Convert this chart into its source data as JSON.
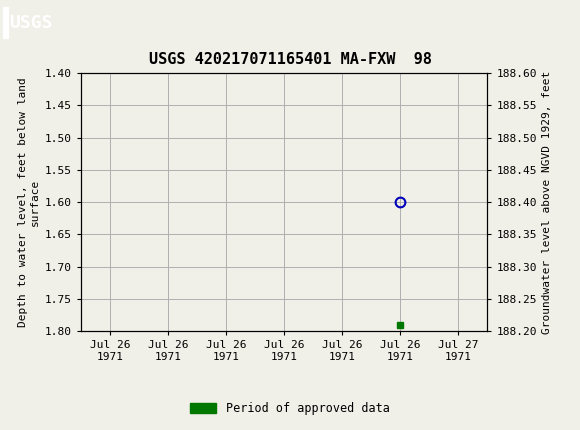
{
  "title": "USGS 420217071165401 MA-FXW  98",
  "title_fontsize": 11,
  "ylabel_left": "Depth to water level, feet below land\nsurface",
  "ylabel_right": "Groundwater level above NGVD 1929, feet",
  "background_color": "#f0f0e8",
  "plot_bg_color": "#f0f0e8",
  "header_color": "#1a6b3c",
  "grid_color": "#b0b0b0",
  "ylim_left_top": 1.4,
  "ylim_left_bottom": 1.8,
  "ylim_right_top": 188.6,
  "ylim_right_bottom": 188.2,
  "yticks_left": [
    1.4,
    1.45,
    1.5,
    1.55,
    1.6,
    1.65,
    1.7,
    1.75,
    1.8
  ],
  "yticks_right": [
    188.6,
    188.55,
    188.5,
    188.45,
    188.4,
    188.35,
    188.3,
    188.25,
    188.2
  ],
  "x_data_num": 3.0,
  "y_circle": 1.6,
  "y_square": 1.79,
  "circle_color": "#0000bb",
  "square_color": "#007700",
  "xtick_labels": [
    "Jul 26\n1971",
    "Jul 26\n1971",
    "Jul 26\n1971",
    "Jul 26\n1971",
    "Jul 26\n1971",
    "Jul 26\n1971",
    "Jul 27\n1971"
  ],
  "xtick_positions": [
    0.5,
    1.0,
    1.5,
    2.0,
    2.5,
    3.0,
    3.5
  ],
  "xlim": [
    0.25,
    3.75
  ],
  "legend_label": "Period of approved data",
  "legend_color": "#007700",
  "tick_fontsize": 8,
  "label_fontsize": 8
}
